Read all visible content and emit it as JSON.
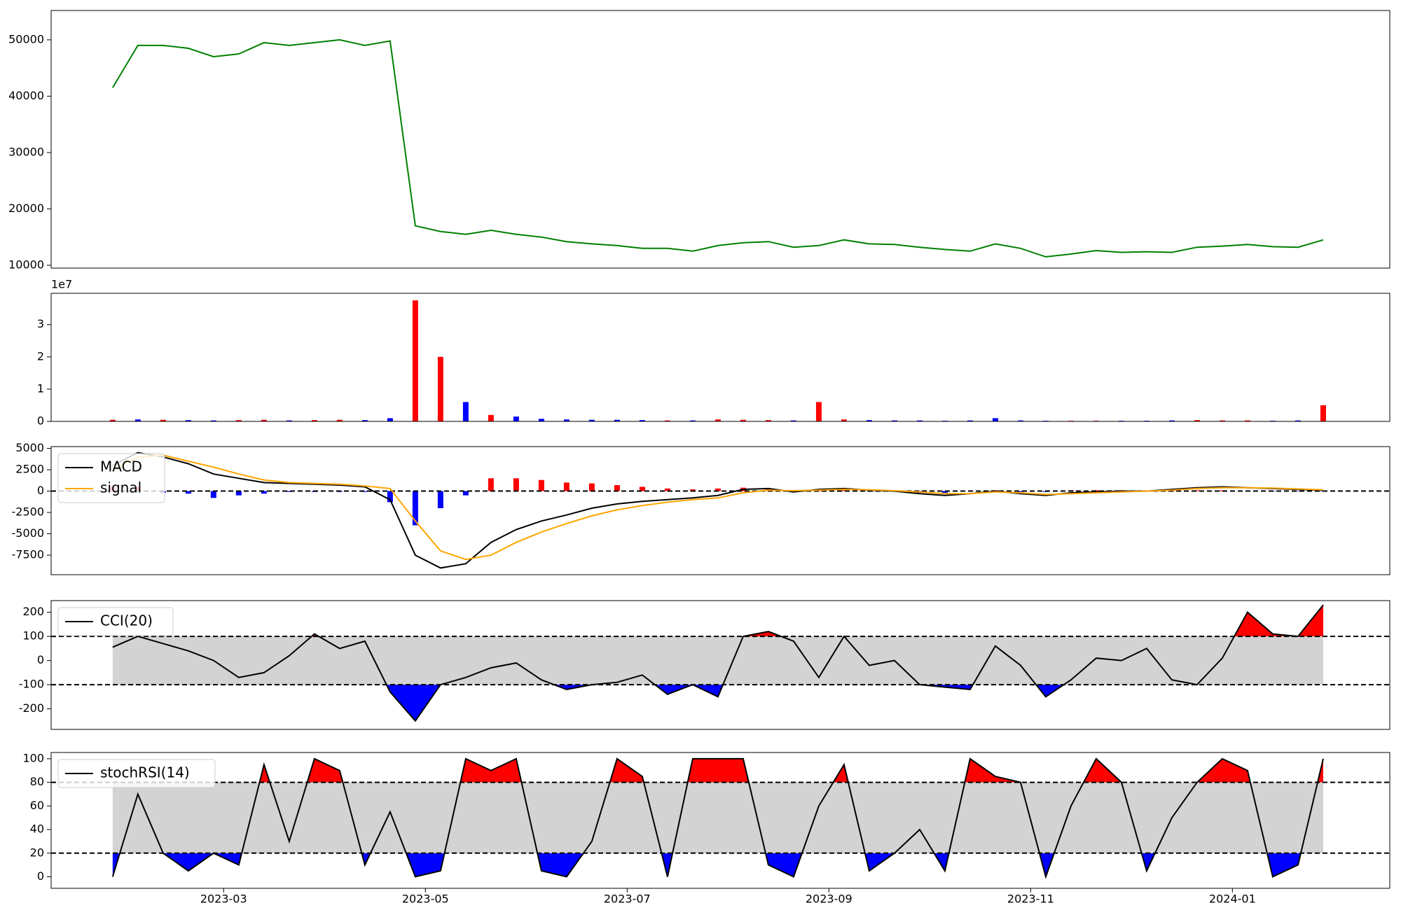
{
  "chart_data": [
    {
      "type": "line",
      "xlim": [
        1.29,
        14.56
      ],
      "ylim": [
        9500,
        55200
      ],
      "yticks": [
        10000,
        20000,
        30000,
        40000,
        50000
      ],
      "x": [
        1.9,
        2.15,
        2.4,
        2.65,
        2.9,
        3.15,
        3.4,
        3.65,
        3.9,
        4.15,
        4.4,
        4.65,
        4.9,
        5.15,
        5.4,
        5.65,
        5.9,
        6.15,
        6.4,
        6.65,
        6.9,
        7.15,
        7.4,
        7.65,
        7.9,
        8.15,
        8.4,
        8.65,
        8.9,
        9.15,
        9.4,
        9.65,
        9.9,
        10.15,
        10.4,
        10.65,
        10.9,
        11.15,
        11.4,
        11.65,
        11.9,
        12.15,
        12.4,
        12.65,
        12.9,
        13.15,
        13.4,
        13.65,
        13.9
      ],
      "color": "#008000",
      "values": [
        41500,
        49000,
        49000,
        48500,
        47000,
        47500,
        49500,
        49000,
        49500,
        50000,
        49000,
        49800,
        17000,
        16000,
        15500,
        16200,
        15500,
        15000,
        14200,
        13800,
        13500,
        13000,
        13000,
        12500,
        13500,
        14000,
        14200,
        13200,
        13500,
        14500,
        13800,
        13700,
        13200,
        12800,
        12500,
        13800,
        13000,
        11500,
        12000,
        12600,
        12300,
        12400,
        12300,
        13200,
        13400,
        13700,
        13300,
        13200,
        14500
      ]
    },
    {
      "type": "bar",
      "xlim": [
        1.29,
        14.56
      ],
      "ylim": [
        0,
        3.97
      ],
      "yticks": [
        0,
        1,
        2,
        3
      ],
      "offset_label": "1e7",
      "x": [
        1.9,
        2.15,
        2.4,
        2.65,
        2.9,
        3.15,
        3.4,
        3.65,
        3.9,
        4.15,
        4.4,
        4.65,
        4.9,
        5.15,
        5.4,
        5.65,
        5.9,
        6.15,
        6.4,
        6.65,
        6.9,
        7.15,
        7.4,
        7.65,
        7.9,
        8.15,
        8.4,
        8.65,
        8.9,
        9.15,
        9.4,
        9.65,
        9.9,
        10.15,
        10.4,
        10.65,
        10.9,
        11.15,
        11.4,
        11.65,
        11.9,
        12.15,
        12.4,
        12.65,
        12.9,
        13.15,
        13.4,
        13.65,
        13.9
      ],
      "values": [
        0.05,
        0.06,
        0.05,
        0.04,
        0.03,
        0.04,
        0.05,
        0.03,
        0.04,
        0.05,
        0.04,
        0.1,
        3.75,
        2.0,
        0.6,
        0.2,
        0.15,
        0.08,
        0.06,
        0.05,
        0.05,
        0.04,
        0.03,
        0.03,
        0.06,
        0.05,
        0.04,
        0.03,
        0.6,
        0.06,
        0.04,
        0.03,
        0.03,
        0.02,
        0.03,
        0.1,
        0.03,
        0.02,
        0.02,
        0.02,
        0.02,
        0.02,
        0.03,
        0.04,
        0.03,
        0.03,
        0.02,
        0.03,
        0.5
      ],
      "colors": [
        "#ff0000",
        "#0000ff",
        "#ff0000",
        "#0000ff",
        "#0000ff",
        "#ff0000",
        "#ff0000",
        "#0000ff",
        "#ff0000",
        "#ff0000",
        "#0000ff",
        "#0000ff",
        "#ff0000",
        "#ff0000",
        "#0000ff",
        "#ff0000",
        "#0000ff",
        "#0000ff",
        "#0000ff",
        "#0000ff",
        "#0000ff",
        "#0000ff",
        "#ff0000",
        "#0000ff",
        "#ff0000",
        "#ff0000",
        "#ff0000",
        "#0000ff",
        "#ff0000",
        "#ff0000",
        "#0000ff",
        "#0000ff",
        "#0000ff",
        "#0000ff",
        "#0000ff",
        "#0000ff",
        "#0000ff",
        "#0000ff",
        "#ff0000",
        "#ff0000",
        "#0000ff",
        "#0000ff",
        "#0000ff",
        "#ff0000",
        "#ff0000",
        "#ff0000",
        "#0000ff",
        "#0000ff",
        "#ff0000"
      ]
    },
    {
      "type": "macd",
      "xlim": [
        1.29,
        14.56
      ],
      "ylim": [
        -9790,
        5210
      ],
      "yticks": [
        -7500,
        -5000,
        -2500,
        0,
        2500,
        5000
      ],
      "legend": "upper left",
      "zero_line": 0,
      "x": [
        1.9,
        2.15,
        2.4,
        2.65,
        2.9,
        3.15,
        3.4,
        3.65,
        3.9,
        4.15,
        4.4,
        4.65,
        4.9,
        5.15,
        5.4,
        5.65,
        5.9,
        6.15,
        6.4,
        6.65,
        6.9,
        7.15,
        7.4,
        7.65,
        7.9,
        8.15,
        8.4,
        8.65,
        8.9,
        9.15,
        9.4,
        9.65,
        9.9,
        10.15,
        10.4,
        10.65,
        10.9,
        11.15,
        11.4,
        11.65,
        11.9,
        12.15,
        12.4,
        12.65,
        12.9,
        13.15,
        13.4,
        13.65,
        13.9
      ],
      "series": [
        {
          "name": "MACD",
          "color": "#000000",
          "values": [
            3000,
            4500,
            4000,
            3200,
            2000,
            1500,
            1000,
            900,
            800,
            700,
            500,
            -1000,
            -7500,
            -9000,
            -8500,
            -6000,
            -4500,
            -3500,
            -2800,
            -2000,
            -1500,
            -1200,
            -1000,
            -800,
            -500,
            200,
            300,
            -100,
            200,
            300,
            100,
            0,
            -300,
            -500,
            -300,
            0,
            -300,
            -500,
            -200,
            -100,
            0,
            0,
            200,
            400,
            500,
            400,
            300,
            200,
            100
          ]
        },
        {
          "name": "signal",
          "color": "#ffa500",
          "values": [
            2500,
            4000,
            4200,
            3500,
            2800,
            2000,
            1300,
            1000,
            900,
            800,
            600,
            300,
            -3500,
            -7000,
            -8000,
            -7500,
            -6000,
            -4800,
            -3800,
            -2900,
            -2200,
            -1700,
            -1300,
            -1000,
            -800,
            -200,
            100,
            50,
            100,
            200,
            150,
            50,
            -100,
            -300,
            -300,
            -100,
            -200,
            -400,
            -300,
            -200,
            -100,
            0,
            100,
            300,
            400,
            400,
            350,
            250,
            150
          ]
        }
      ],
      "histogram": {
        "up_color": "#ff0000",
        "down_color": "#0000ff",
        "values": [
          500,
          500,
          -200,
          -300,
          -800,
          -500,
          -300,
          -100,
          -100,
          -100,
          -100,
          -1300,
          -4000,
          -2000,
          -500,
          1500,
          1500,
          1300,
          1000,
          900,
          700,
          500,
          300,
          200,
          300,
          400,
          200,
          -150,
          100,
          100,
          -50,
          -50,
          -200,
          -200,
          0,
          100,
          -100,
          -100,
          100,
          100,
          100,
          0,
          100,
          100,
          100,
          0,
          -50,
          -50,
          -50
        ]
      }
    },
    {
      "type": "oscillator",
      "xlim": [
        1.29,
        14.56
      ],
      "ylim": [
        -285,
        248
      ],
      "yticks": [
        -200,
        -100,
        0,
        100,
        200
      ],
      "legend": "upper left",
      "thresholds": [
        -100,
        100
      ],
      "band_color": "#d3d3d3",
      "above_color": "#ff0000",
      "below_color": "#0000ff",
      "x": [
        1.9,
        2.15,
        2.4,
        2.65,
        2.9,
        3.15,
        3.4,
        3.65,
        3.9,
        4.15,
        4.4,
        4.65,
        4.9,
        5.15,
        5.4,
        5.65,
        5.9,
        6.15,
        6.4,
        6.65,
        6.9,
        7.15,
        7.4,
        7.65,
        7.9,
        8.15,
        8.4,
        8.65,
        8.9,
        9.15,
        9.4,
        9.65,
        9.9,
        10.15,
        10.4,
        10.65,
        10.9,
        11.15,
        11.4,
        11.65,
        11.9,
        12.15,
        12.4,
        12.65,
        12.9,
        13.15,
        13.4,
        13.65,
        13.9
      ],
      "series": [
        {
          "name": "CCI(20)",
          "color": "#000000",
          "values": [
            55,
            100,
            70,
            40,
            0,
            -70,
            -50,
            20,
            110,
            50,
            80,
            -130,
            -250,
            -100,
            -70,
            -30,
            -10,
            -80,
            -120,
            -100,
            -90,
            -60,
            -140,
            -100,
            -150,
            100,
            120,
            80,
            -70,
            100,
            -20,
            0,
            -100,
            -110,
            -120,
            60,
            -20,
            -150,
            -80,
            10,
            0,
            50,
            -80,
            -100,
            10,
            200,
            110,
            100,
            230
          ]
        }
      ]
    },
    {
      "type": "oscillator",
      "xlim": [
        1.29,
        14.56
      ],
      "ylim": [
        -9.8,
        105.3
      ],
      "yticks": [
        0,
        20,
        40,
        60,
        80,
        100
      ],
      "legend": "upper left",
      "thresholds": [
        20,
        80
      ],
      "band_color": "#d3d3d3",
      "above_color": "#ff0000",
      "below_color": "#0000ff",
      "xticks": [
        {
          "value": 3,
          "label": "2023-03"
        },
        {
          "value": 5,
          "label": "2023-05"
        },
        {
          "value": 7,
          "label": "2023-07"
        },
        {
          "value": 9,
          "label": "2023-09"
        },
        {
          "value": 11,
          "label": "2023-11"
        },
        {
          "value": 13,
          "label": "2024-01"
        }
      ],
      "x": [
        1.9,
        2.15,
        2.4,
        2.65,
        2.9,
        3.15,
        3.4,
        3.65,
        3.9,
        4.15,
        4.4,
        4.65,
        4.9,
        5.15,
        5.4,
        5.65,
        5.9,
        6.15,
        6.4,
        6.65,
        6.9,
        7.15,
        7.4,
        7.65,
        7.9,
        8.15,
        8.4,
        8.65,
        8.9,
        9.15,
        9.4,
        9.65,
        9.9,
        10.15,
        10.4,
        10.65,
        10.9,
        11.15,
        11.4,
        11.65,
        11.9,
        12.15,
        12.4,
        12.65,
        12.9,
        13.15,
        13.4,
        13.65,
        13.9
      ],
      "series": [
        {
          "name": "stochRSI(14)",
          "color": "#000000",
          "values": [
            0,
            70,
            20,
            5,
            20,
            10,
            95,
            30,
            100,
            90,
            10,
            55,
            0,
            5,
            100,
            90,
            100,
            5,
            0,
            30,
            100,
            85,
            0,
            100,
            100,
            100,
            10,
            0,
            60,
            95,
            5,
            20,
            40,
            5,
            100,
            85,
            80,
            0,
            60,
            100,
            80,
            5,
            50,
            80,
            100,
            90,
            0,
            10,
            100
          ]
        }
      ]
    }
  ]
}
